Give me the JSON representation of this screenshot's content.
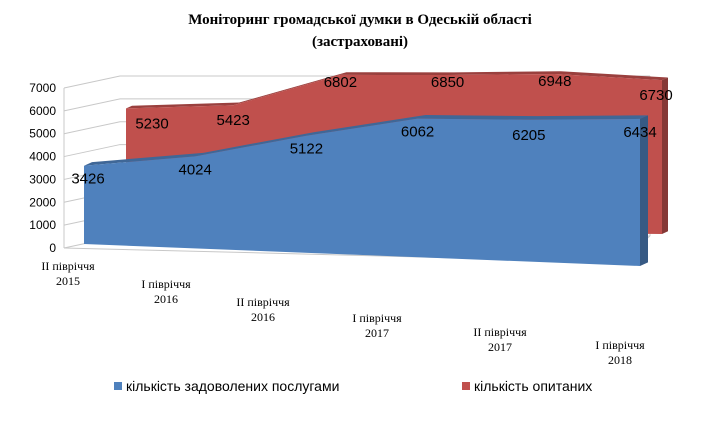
{
  "chart_data": {
    "type": "area",
    "title": "Моніторинг громадської думки в Одеській області",
    "subtitle": "(застраховані)",
    "categories": [
      [
        "ІІ півріччя",
        "2015"
      ],
      [
        "І півріччя",
        "2016"
      ],
      [
        "ІІ півріччя",
        "2016"
      ],
      [
        "І півріччя",
        "2017"
      ],
      [
        "ІІ півріччя",
        "2017"
      ],
      [
        "І півріччя",
        "2018"
      ]
    ],
    "series": [
      {
        "name": "кількість задоволених послугами",
        "color": "#4f81bd",
        "values": [
          3426,
          4024,
          5122,
          6062,
          6205,
          6434
        ]
      },
      {
        "name": "кількість опитаних",
        "color": "#c0504d",
        "values": [
          5230,
          5423,
          6802,
          6850,
          6948,
          6730
        ]
      }
    ],
    "ylim": [
      0,
      7000
    ],
    "yticks": [
      "0",
      "1000",
      "2000",
      "3000",
      "4000",
      "5000",
      "6000",
      "7000"
    ],
    "grid": true,
    "legend_position": "bottom",
    "view": "3d"
  }
}
